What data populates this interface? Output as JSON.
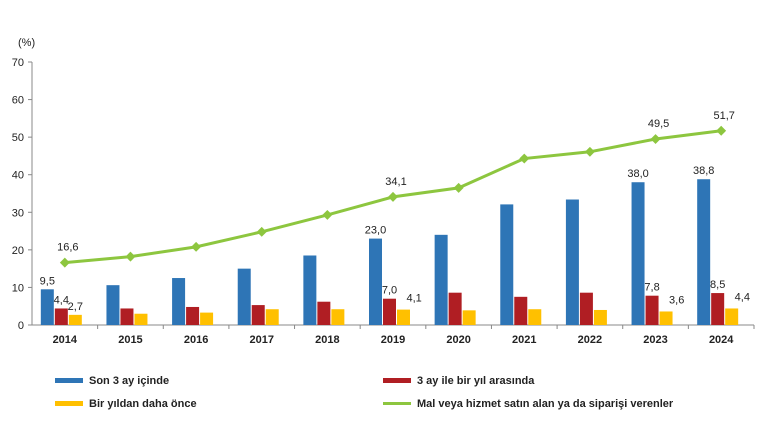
{
  "chart_data": {
    "type": "bar",
    "unit_label": "(%)",
    "categories": [
      "2014",
      "2015",
      "2016",
      "2017",
      "2018",
      "2019",
      "2020",
      "2021",
      "2022",
      "2023",
      "2024"
    ],
    "ylim": [
      0,
      70
    ],
    "yticks": [
      0,
      10,
      20,
      30,
      40,
      50,
      60,
      70
    ],
    "grid": false,
    "legend_position": "bottom",
    "series": [
      {
        "name": "Son 3 ay içinde",
        "kind": "bar",
        "color": "#2E75B6",
        "values": [
          9.5,
          10.6,
          12.5,
          15.0,
          18.5,
          23.0,
          24.0,
          32.1,
          33.4,
          38.0,
          38.8
        ],
        "labels": [
          "9,5",
          "",
          "",
          "",
          "",
          "23,0",
          "",
          "",
          "",
          "38,0",
          "38,8"
        ]
      },
      {
        "name": "3 ay ile bir yıl arasında",
        "kind": "bar",
        "color": "#B01E23",
        "values": [
          4.4,
          4.4,
          4.8,
          5.3,
          6.2,
          7.0,
          8.6,
          7.5,
          8.6,
          7.8,
          8.5
        ],
        "labels": [
          "4,4",
          "",
          "",
          "",
          "",
          "7,0",
          "",
          "",
          "",
          "7,8",
          "8,5"
        ]
      },
      {
        "name": "Bir yıldan daha önce",
        "kind": "bar",
        "color": "#FFC000",
        "values": [
          2.7,
          3.0,
          3.3,
          4.2,
          4.2,
          4.1,
          3.9,
          4.2,
          4.0,
          3.6,
          4.4
        ],
        "labels": [
          "2,7",
          "",
          "",
          "",
          "",
          "4,1",
          "",
          "",
          "",
          "3,6",
          "4,4"
        ]
      },
      {
        "name": "Mal veya hizmet satın alan ya da siparişi verenler",
        "kind": "line",
        "color": "#8DC63F",
        "values": [
          16.6,
          18.2,
          20.8,
          24.8,
          29.3,
          34.1,
          36.5,
          44.3,
          46.1,
          49.5,
          51.7
        ],
        "labels": [
          "16,6",
          "",
          "",
          "",
          "",
          "34,1",
          "",
          "",
          "",
          "49,5",
          "51,7"
        ]
      }
    ]
  }
}
